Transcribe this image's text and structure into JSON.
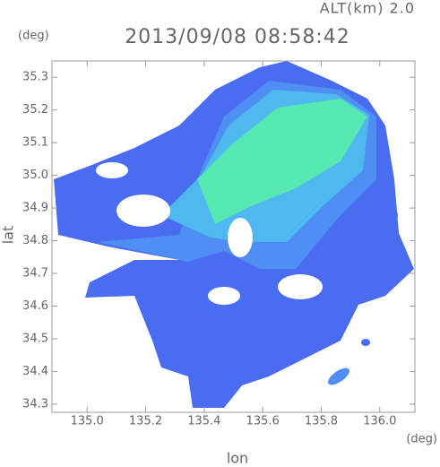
{
  "chart_data": {
    "type": "map",
    "title": "2013/09/08 08:58:42",
    "annotation": "ALT(km) 2.0",
    "xlabel": "lon",
    "ylabel": "lat",
    "xunit": "(deg)",
    "yunit": "(deg)",
    "xlim": [
      134.88,
      136.12
    ],
    "ylim": [
      34.275,
      35.35
    ],
    "xticks": [
      {
        "value": 135,
        "label": "135.0"
      },
      135.2,
      135.4,
      135.6,
      135.8,
      {
        "value": 136,
        "label": "136.0"
      }
    ],
    "yticks": [
      34.3,
      34.4,
      34.5,
      34.6,
      34.7,
      34.8,
      34.9,
      {
        "value": 35,
        "label": "35.0"
      },
      35.1,
      35.2,
      35.3
    ]
  }
}
